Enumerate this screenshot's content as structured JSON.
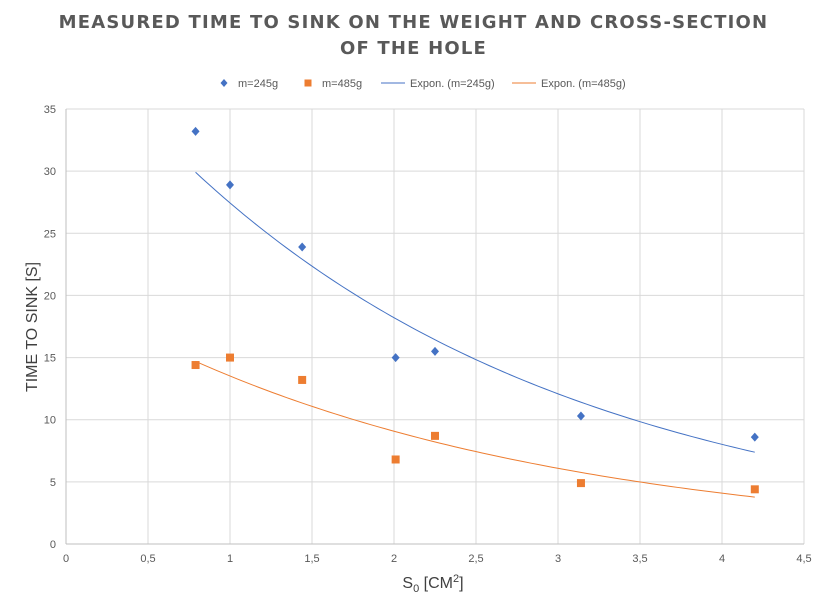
{
  "title_lines": [
    "MEASURED TIME TO SINK ON THE WEIGHT AND CROSS-SECTION",
    "OF THE HOLE"
  ],
  "colors": {
    "blue": "#4472C4",
    "orange": "#ED7D31",
    "grid": "#D9D9D9",
    "text": "#595959"
  },
  "legend": [
    "m=245g",
    "m=485g",
    "Expon. (m=245g)",
    "Expon. (m=485g)"
  ],
  "chart_data": {
    "type": "scatter",
    "title": "MEASURED TIME TO SINK ON THE WEIGHT AND CROSS-SECTION OF THE HOLE",
    "xlabel": "S0 [CM2]",
    "ylabel": "TIME TO SINK [S]",
    "xlim": [
      0,
      4.5
    ],
    "ylim": [
      0,
      35
    ],
    "x_ticks": [
      "0",
      "0,5",
      "1",
      "1,5",
      "2",
      "2,5",
      "3",
      "3,5",
      "4",
      "4,5"
    ],
    "y_ticks": [
      "0",
      "5",
      "10",
      "15",
      "20",
      "25",
      "30",
      "35"
    ],
    "grid": true,
    "legend_position": "top",
    "series": [
      {
        "name": "m=245g",
        "marker": "diamond",
        "color": "#4472C4",
        "x": [
          0.79,
          1.0,
          1.44,
          2.01,
          2.25,
          3.14,
          4.2
        ],
        "y": [
          33.2,
          28.9,
          23.9,
          15.0,
          15.5,
          10.3,
          8.6
        ]
      },
      {
        "name": "m=485g",
        "marker": "square",
        "color": "#ED7D31",
        "x": [
          0.79,
          1.0,
          1.44,
          2.01,
          2.25,
          3.14,
          4.2
        ],
        "y": [
          14.4,
          15.0,
          13.2,
          6.8,
          8.7,
          4.9,
          4.4
        ]
      }
    ],
    "trendlines": [
      {
        "name": "Expon. (m=245g)",
        "type": "exponential",
        "color": "#4472C4"
      },
      {
        "name": "Expon. (m=485g)",
        "type": "exponential",
        "color": "#ED7D31"
      }
    ]
  }
}
